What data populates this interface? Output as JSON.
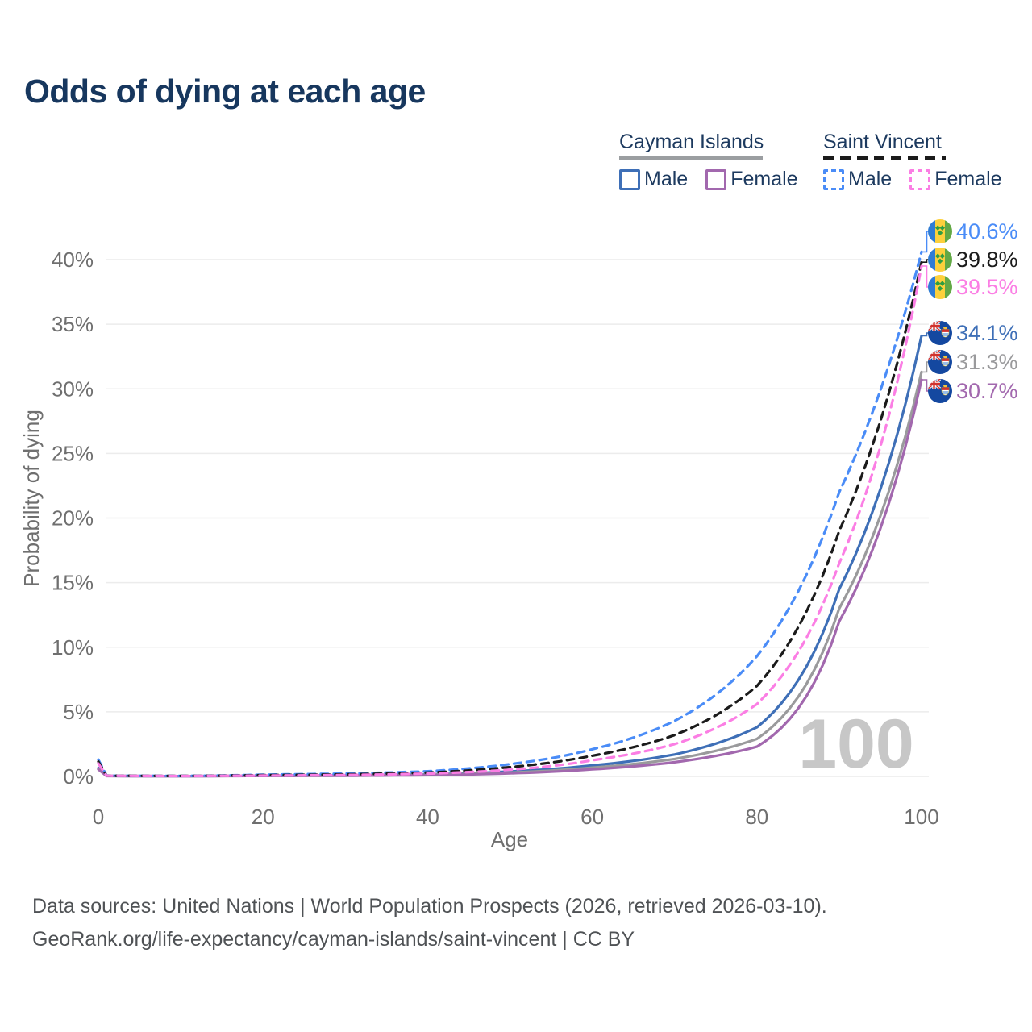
{
  "title": "Odds of dying at each age",
  "legend": {
    "groups": [
      {
        "name": "Cayman Islands",
        "line_style": "solid",
        "underline_color": "#9b9ea1",
        "items": [
          {
            "label": "Male",
            "color": "#3e6fb7"
          },
          {
            "label": "Female",
            "color": "#a268ae"
          }
        ]
      },
      {
        "name": "Saint Vincent",
        "line_style": "dashed",
        "underline_color": "#1b1b1b",
        "items": [
          {
            "label": "Male",
            "color": "#4a8cf7"
          },
          {
            "label": "Female",
            "color": "#fb7ee4"
          }
        ]
      }
    ]
  },
  "chart_data": {
    "type": "line",
    "title": "Odds of dying at each age",
    "xlabel": "Age",
    "ylabel": "Probability of dying",
    "xlim": [
      0,
      100
    ],
    "ylim": [
      0,
      42
    ],
    "x_ticks": [
      0,
      20,
      40,
      60,
      80,
      100
    ],
    "y_ticks": [
      0,
      5,
      10,
      15,
      20,
      25,
      30,
      35,
      40
    ],
    "y_tick_suffix": "%",
    "grid": "horizontal",
    "legend_position": "top-right",
    "watermark": "100",
    "x": [
      0,
      1,
      10,
      20,
      30,
      40,
      50,
      60,
      70,
      80,
      90,
      100
    ],
    "series": [
      {
        "name": "Saint Vincent Male",
        "country": "Saint Vincent",
        "sex": "male",
        "flag": "saint-vincent",
        "dash": true,
        "color": "#4a8cf7",
        "label_color": "#4a8cf7",
        "end_label": "40.6%",
        "end_value": 40.6,
        "values": [
          1.3,
          0.06,
          0.04,
          0.14,
          0.22,
          0.4,
          0.95,
          2.1,
          4.3,
          9.3,
          22.0,
          40.6
        ]
      },
      {
        "name": "Saint Vincent Both sexes",
        "country": "Saint Vincent",
        "sex": "both",
        "flag": "saint-vincent",
        "dash": true,
        "color": "#1b1b1b",
        "label_color": "#1b1b1b",
        "end_label": "39.8%",
        "end_value": 39.8,
        "values": [
          1.15,
          0.055,
          0.035,
          0.1,
          0.16,
          0.3,
          0.72,
          1.6,
          3.2,
          7.0,
          19.0,
          39.8
        ]
      },
      {
        "name": "Saint Vincent Female",
        "country": "Saint Vincent",
        "sex": "female",
        "flag": "saint-vincent",
        "dash": true,
        "color": "#fb7ee4",
        "label_color": "#fb7ee4",
        "end_label": "39.5%",
        "end_value": 39.5,
        "values": [
          1.0,
          0.05,
          0.03,
          0.07,
          0.11,
          0.22,
          0.52,
          1.25,
          2.5,
          5.6,
          16.5,
          39.5
        ]
      },
      {
        "name": "Cayman Islands Male",
        "country": "Cayman Islands",
        "sex": "male",
        "flag": "cayman-islands",
        "dash": false,
        "color": "#3e6fb7",
        "label_color": "#3e6fb7",
        "end_label": "34.1%",
        "end_value": 34.1,
        "values": [
          0.65,
          0.04,
          0.025,
          0.06,
          0.09,
          0.16,
          0.38,
          0.85,
          1.7,
          3.8,
          14.5,
          34.1
        ]
      },
      {
        "name": "Cayman Islands Both sexes",
        "country": "Cayman Islands",
        "sex": "both",
        "flag": "cayman-islands",
        "dash": false,
        "color": "#9a9a9c",
        "label_color": "#9a9a9c",
        "end_label": "31.3%",
        "end_value": 31.3,
        "values": [
          0.6,
          0.035,
          0.022,
          0.05,
          0.07,
          0.13,
          0.3,
          0.68,
          1.35,
          2.9,
          13.0,
          31.3
        ]
      },
      {
        "name": "Cayman Islands Female",
        "country": "Cayman Islands",
        "sex": "female",
        "flag": "cayman-islands",
        "dash": false,
        "color": "#a268ae",
        "label_color": "#a268ae",
        "end_label": "30.7%",
        "end_value": 30.7,
        "values": [
          0.55,
          0.03,
          0.02,
          0.04,
          0.055,
          0.1,
          0.24,
          0.55,
          1.1,
          2.3,
          12.0,
          30.7
        ]
      }
    ]
  },
  "colors": {
    "title": "#17375e",
    "axis_text": "#6f6f6f",
    "grid": "#ececec",
    "watermark": "#c7c7c7",
    "footer": "#4f5255"
  },
  "footer": {
    "line1": "Data sources: United Nations | World Population Prospects (2026, retrieved 2026-03-10).",
    "line2": "GeoRank.org/life-expectancy/cayman-islands/saint-vincent | CC BY"
  }
}
